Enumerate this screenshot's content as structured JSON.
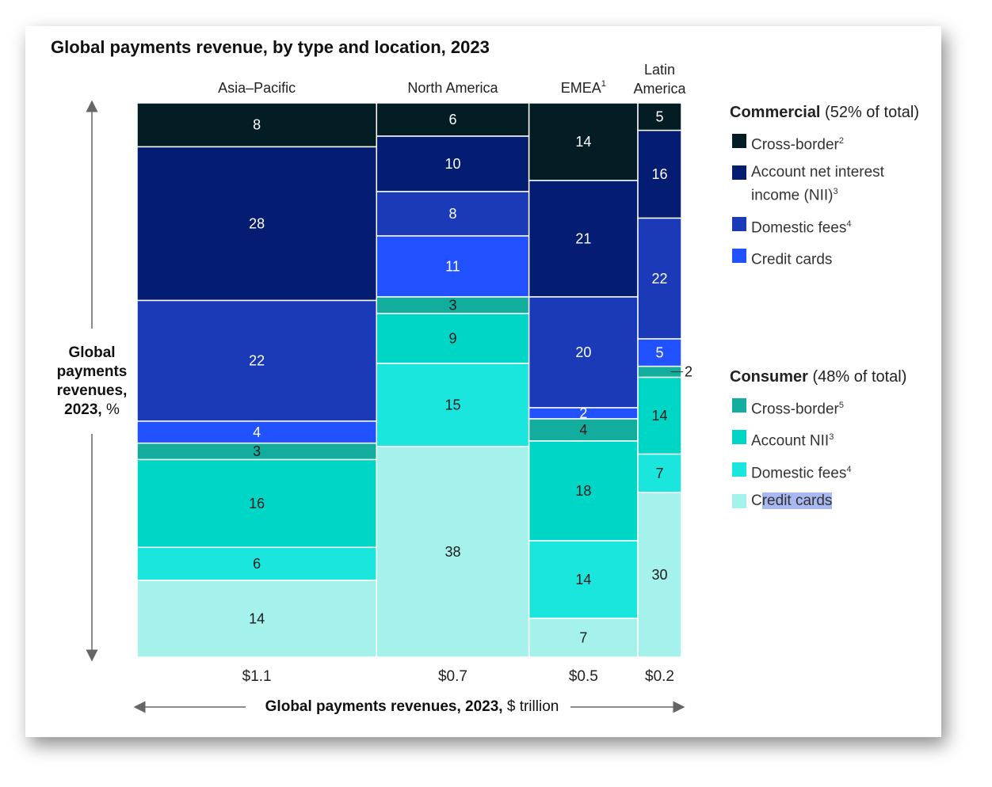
{
  "title": "Global payments revenue, by type and location, 2023",
  "y_axis_label": {
    "bold": "Global payments revenues, 2023,",
    "rest": " %"
  },
  "x_axis_label": {
    "bold": "Global payments revenues, 2023,",
    "rest": " $ trillion"
  },
  "colors": {
    "commercial_cross_border": "#041c24",
    "commercial_nii": "#051c73",
    "commercial_domestic_fees": "#1a3ab8",
    "commercial_credit_cards": "#2251ff",
    "consumer_cross_border": "#13ad9d",
    "consumer_nii": "#00d6c6",
    "consumer_domestic_fees": "#1ae6dd",
    "consumer_credit_cards": "#a5f2ed"
  },
  "legend": {
    "commercial": {
      "head_bold": "Commercial",
      "head_rest": " (52% of total)",
      "items": [
        {
          "label": "Cross-border",
          "sup": "2"
        },
        {
          "label": "Account net interest income (NII)",
          "sup": "3"
        },
        {
          "label": "Domestic fees",
          "sup": "4"
        },
        {
          "label": "Credit cards",
          "sup": ""
        }
      ]
    },
    "consumer": {
      "head_bold": "Consumer",
      "head_rest": " (48% of total)",
      "items": [
        {
          "label": "Cross-border",
          "sup": "5"
        },
        {
          "label": "Account NII",
          "sup": "3"
        },
        {
          "label": "Domestic fees",
          "sup": "4"
        },
        {
          "label": "Credit cards",
          "sup": ""
        }
      ]
    }
  },
  "chart_data": {
    "type": "bar",
    "subtype": "marimekko",
    "categories": [
      "Asia–Pacific",
      "North America",
      "EMEA",
      "Latin America"
    ],
    "category_display": [
      "Asia–Pacific",
      "North America",
      "EMEA¹",
      "Latin America"
    ],
    "totals": [
      1.1,
      0.7,
      0.5,
      0.2
    ],
    "total_labels": [
      "$1.1",
      "$0.7",
      "$0.5",
      "$0.2"
    ],
    "series": [
      {
        "name": "Commercial Cross-border",
        "values": [
          8,
          6,
          14,
          5
        ]
      },
      {
        "name": "Commercial Account net interest income (NII)",
        "values": [
          28,
          10,
          21,
          16
        ]
      },
      {
        "name": "Commercial Domestic fees",
        "values": [
          22,
          8,
          20,
          22
        ]
      },
      {
        "name": "Commercial Credit cards",
        "values": [
          4,
          11,
          2,
          5
        ]
      },
      {
        "name": "Consumer Cross-border",
        "values": [
          3,
          3,
          4,
          2
        ]
      },
      {
        "name": "Consumer Account NII",
        "values": [
          16,
          9,
          18,
          14
        ]
      },
      {
        "name": "Consumer Domestic fees",
        "values": [
          6,
          15,
          14,
          7
        ]
      },
      {
        "name": "Consumer Credit cards",
        "values": [
          14,
          38,
          7,
          30
        ]
      }
    ],
    "ylim": [
      0,
      100
    ]
  }
}
